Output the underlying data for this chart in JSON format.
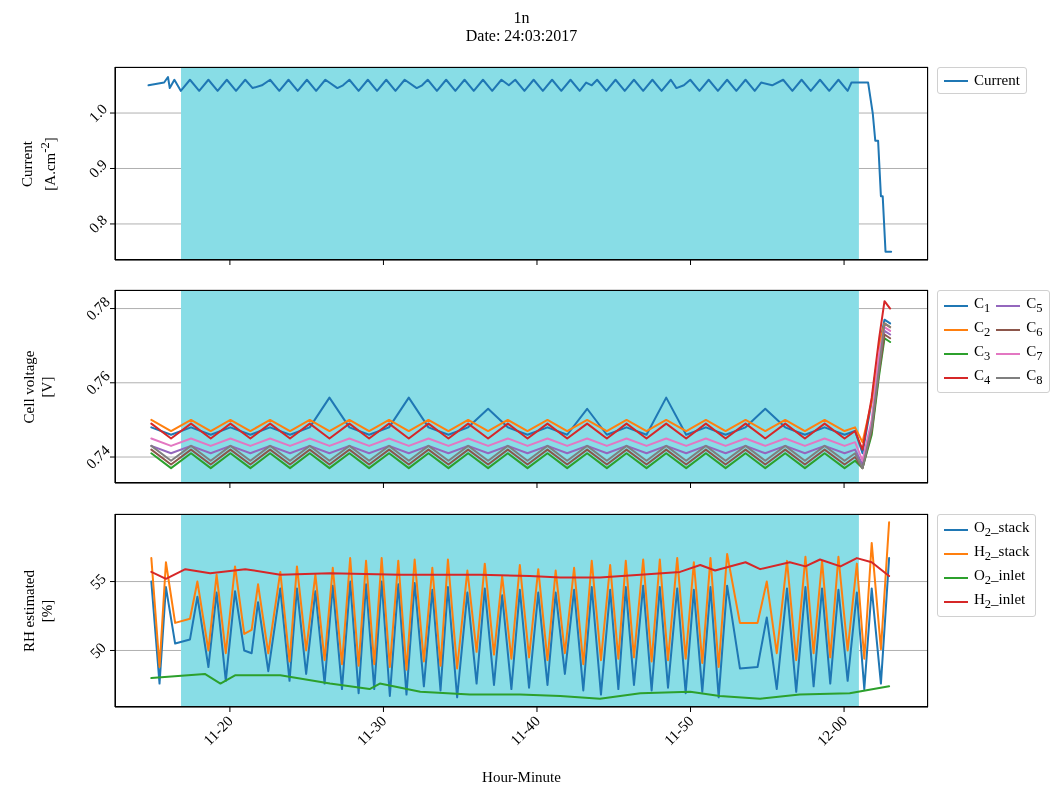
{
  "chart_data": [
    {
      "type": "line",
      "title": "1n",
      "subtitle": "Date: 24:03:2017",
      "ylabel": "Current\n[A.cm$^{-2}$]",
      "xlim": [
        "2017-03-24T11:12:31",
        "2017-03-24T12:05:28"
      ],
      "ylim": [
        0.735,
        1.083
      ],
      "yticks": [
        0.8,
        0.9,
        {
          "value": 1,
          "label": "1.0"
        }
      ],
      "xticks": [
        {
          "value": "2017-03-24T11:20",
          "label": null
        },
        {
          "value": "2017-03-24T11:30",
          "label": null
        },
        {
          "value": "2017-03-24T11:40",
          "label": null
        },
        {
          "value": "2017-03-24T11:50",
          "label": null
        },
        {
          "value": "2017-03-24T12:00",
          "label": null
        }
      ],
      "tick_labels": "y",
      "grid": true,
      "legend": "top right",
      "bands": [
        {
          "axis": "x",
          "from": "2017-03-24T11:16:49",
          "to": "2017-03-24T12:00:58",
          "color": "#88dde6"
        }
      ],
      "x": [
        "2017-03-24T11:14:42",
        "2017-03-24T11:15:43",
        "2017-03-24T11:15:58",
        "2017-03-24T11:16:05",
        "2017-03-24T11:16:23",
        "2017-03-24T11:16:48",
        "2017-03-24T11:17:24",
        "2017-03-24T11:18:00",
        "2017-03-24T11:18:36",
        "2017-03-24T11:19:12",
        "2017-03-24T11:19:48",
        "2017-03-24T11:20:24",
        "2017-03-24T11:21:00",
        "2017-03-24T11:21:29",
        "2017-03-24T11:22:05",
        "2017-03-24T11:22:37",
        "2017-03-24T11:23:13",
        "2017-03-24T11:23:49",
        "2017-03-24T11:24:25",
        "2017-03-24T11:25:01",
        "2017-03-24T11:25:37",
        "2017-03-24T11:26:13",
        "2017-03-24T11:27:00",
        "2017-03-24T11:27:22",
        "2017-03-24T11:27:47",
        "2017-03-24T11:28:23",
        "2017-03-24T11:28:59",
        "2017-03-24T11:29:35",
        "2017-03-24T11:30:11",
        "2017-03-24T11:30:47",
        "2017-03-24T11:31:23",
        "2017-03-24T11:32:10",
        "2017-03-24T11:32:31",
        "2017-03-24T11:32:53",
        "2017-03-24T11:33:29",
        "2017-03-24T11:34:05",
        "2017-03-24T11:34:41",
        "2017-03-24T11:35:17",
        "2017-03-24T11:35:53",
        "2017-03-24T11:36:29",
        "2017-03-24T11:37:05",
        "2017-03-24T11:37:41",
        "2017-03-24T11:38:10",
        "2017-03-24T11:38:35",
        "2017-03-24T11:39:11",
        "2017-03-24T11:39:47",
        "2017-03-24T11:40:23",
        "2017-03-24T11:40:59",
        "2017-03-24T11:41:35",
        "2017-03-24T11:42:11",
        "2017-03-24T11:42:47",
        "2017-03-24T11:43:12",
        "2017-03-24T11:43:34",
        "2017-03-24T11:43:55",
        "2017-03-24T11:44:31",
        "2017-03-24T11:45:07",
        "2017-03-24T11:45:43",
        "2017-03-24T11:46:19",
        "2017-03-24T11:46:55",
        "2017-03-24T11:47:31",
        "2017-03-24T11:48:07",
        "2017-03-24T11:48:43",
        "2017-03-24T11:49:05",
        "2017-03-24T11:49:34",
        "2017-03-24T11:49:59",
        "2017-03-24T11:50:35",
        "2017-03-24T11:51:11",
        "2017-03-24T11:51:47",
        "2017-03-24T11:52:23",
        "2017-03-24T11:52:59",
        "2017-03-24T11:53:35",
        "2017-03-24T11:54:11",
        "2017-03-24T11:54:36",
        "2017-03-24T11:55:19",
        "2017-03-24T11:56:02",
        "2017-03-24T11:56:38",
        "2017-03-24T11:57:14",
        "2017-03-24T11:57:50",
        "2017-03-24T11:58:26",
        "2017-03-24T11:59:02",
        "2017-03-24T11:59:38",
        "2017-03-24T12:00:14",
        "2017-03-24T12:00:29",
        "2017-03-24T12:01:34",
        "2017-03-24T12:01:52",
        "2017-03-24T12:02:02",
        "2017-03-24T12:02:13",
        "2017-03-24T12:02:24",
        "2017-03-24T12:02:31",
        "2017-03-24T12:02:42",
        "2017-03-24T12:03:04"
      ],
      "series": [
        {
          "name": "Current",
          "color": "#1f77b4",
          "values": [
            1.05,
            1.055,
            1.065,
            1.045,
            1.06,
            1.04,
            1.06,
            1.04,
            1.06,
            1.04,
            1.06,
            1.04,
            1.06,
            1.045,
            1.05,
            1.06,
            1.04,
            1.06,
            1.04,
            1.06,
            1.04,
            1.06,
            1.045,
            1.05,
            1.06,
            1.04,
            1.06,
            1.04,
            1.06,
            1.04,
            1.06,
            1.045,
            1.05,
            1.06,
            1.04,
            1.06,
            1.04,
            1.06,
            1.04,
            1.06,
            1.04,
            1.06,
            1.05,
            1.06,
            1.04,
            1.06,
            1.04,
            1.06,
            1.04,
            1.06,
            1.04,
            1.055,
            1.05,
            1.06,
            1.04,
            1.06,
            1.04,
            1.06,
            1.04,
            1.06,
            1.04,
            1.06,
            1.045,
            1.05,
            1.06,
            1.04,
            1.06,
            1.04,
            1.06,
            1.04,
            1.06,
            1.04,
            1.055,
            1.05,
            1.06,
            1.04,
            1.06,
            1.04,
            1.06,
            1.04,
            1.06,
            1.04,
            1.055,
            1.055,
            1.0,
            0.95,
            0.95,
            0.85,
            0.85,
            0.75,
            0.75
          ]
        }
      ]
    },
    {
      "type": "line",
      "ylabel": "Cell voltage\n[V]",
      "xlim": [
        "2017-03-24T11:12:31",
        "2017-03-24T12:05:28"
      ],
      "ylim": [
        0.733,
        0.785
      ],
      "yticks": [
        0.74,
        0.76,
        0.78
      ],
      "xticks": [
        {
          "value": "2017-03-24T11:20",
          "label": null
        },
        {
          "value": "2017-03-24T11:30",
          "label": null
        },
        {
          "value": "2017-03-24T11:40",
          "label": null
        },
        {
          "value": "2017-03-24T11:50",
          "label": null
        },
        {
          "value": "2017-03-24T12:00",
          "label": null
        }
      ],
      "tick_labels": "y",
      "grid": true,
      "legend": "top right",
      "bands": [
        {
          "axis": "x",
          "from": "2017-03-24T11:16:49",
          "to": "2017-03-24T12:00:58",
          "color": "#88dde6"
        }
      ],
      "x": [
        "2017-03-24T11:14:53",
        "2017-03-24T11:16:10",
        "2017-03-24T11:17:28",
        "2017-03-24T11:18:45",
        "2017-03-24T11:20:02",
        "2017-03-24T11:21:20",
        "2017-03-24T11:22:37",
        "2017-03-24T11:23:55",
        "2017-03-24T11:25:12",
        "2017-03-24T11:26:29",
        "2017-03-24T11:27:47",
        "2017-03-24T11:29:04",
        "2017-03-24T11:30:22",
        "2017-03-24T11:31:39",
        "2017-03-24T11:32:56",
        "2017-03-24T11:34:14",
        "2017-03-24T11:35:31",
        "2017-03-24T11:36:49",
        "2017-03-24T11:38:06",
        "2017-03-24T11:39:23",
        "2017-03-24T11:40:41",
        "2017-03-24T11:41:58",
        "2017-03-24T11:43:16",
        "2017-03-24T11:44:33",
        "2017-03-24T11:45:50",
        "2017-03-24T11:47:08",
        "2017-03-24T11:48:25",
        "2017-03-24T11:49:43",
        "2017-03-24T11:51:00",
        "2017-03-24T11:52:17",
        "2017-03-24T11:53:35",
        "2017-03-24T11:54:52",
        "2017-03-24T11:56:10",
        "2017-03-24T11:57:27",
        "2017-03-24T11:58:44",
        "2017-03-24T12:00:02",
        "2017-03-24T12:00:43",
        "2017-03-24T12:01:12",
        "2017-03-24T12:01:48",
        "2017-03-24T12:02:17",
        "2017-03-24T12:02:38",
        "2017-03-24T12:03:00"
      ],
      "series": [
        {
          "name": "C$_{1}$",
          "color": "#1f77b4",
          "values": [
            0.748,
            0.746,
            0.748,
            0.746,
            0.748,
            0.746,
            0.748,
            0.746,
            0.748,
            0.756,
            0.748,
            0.746,
            0.748,
            0.756,
            0.748,
            0.746,
            0.748,
            0.753,
            0.748,
            0.746,
            0.748,
            0.746,
            0.753,
            0.746,
            0.748,
            0.746,
            0.756,
            0.746,
            0.748,
            0.746,
            0.748,
            0.753,
            0.748,
            0.746,
            0.748,
            0.746,
            0.747,
            0.741,
            0.755,
            0.77,
            0.777,
            0.776
          ]
        },
        {
          "name": "C$_{2}$",
          "color": "#ff7f0e",
          "values": [
            0.75,
            0.747,
            0.75,
            0.747,
            0.75,
            0.747,
            0.75,
            0.747,
            0.75,
            0.747,
            0.75,
            0.747,
            0.75,
            0.747,
            0.75,
            0.747,
            0.75,
            0.747,
            0.75,
            0.747,
            0.75,
            0.747,
            0.75,
            0.747,
            0.75,
            0.747,
            0.75,
            0.747,
            0.75,
            0.747,
            0.75,
            0.747,
            0.75,
            0.747,
            0.75,
            0.747,
            0.748,
            0.744,
            0.755,
            0.77,
            0.776,
            0.775
          ]
        },
        {
          "name": "C$_{3}$",
          "color": "#2ca02c",
          "values": [
            0.741,
            0.737,
            0.741,
            0.737,
            0.741,
            0.737,
            0.741,
            0.737,
            0.741,
            0.737,
            0.741,
            0.737,
            0.741,
            0.737,
            0.741,
            0.737,
            0.741,
            0.737,
            0.741,
            0.737,
            0.741,
            0.737,
            0.741,
            0.737,
            0.741,
            0.737,
            0.741,
            0.737,
            0.741,
            0.737,
            0.741,
            0.737,
            0.741,
            0.737,
            0.741,
            0.737,
            0.739,
            0.737,
            0.746,
            0.762,
            0.772,
            0.771
          ]
        },
        {
          "name": "C$_{4}$",
          "color": "#d62728",
          "values": [
            0.749,
            0.745,
            0.749,
            0.745,
            0.749,
            0.745,
            0.749,
            0.745,
            0.749,
            0.745,
            0.749,
            0.745,
            0.749,
            0.745,
            0.749,
            0.745,
            0.749,
            0.745,
            0.749,
            0.745,
            0.749,
            0.745,
            0.749,
            0.745,
            0.749,
            0.745,
            0.749,
            0.745,
            0.749,
            0.745,
            0.749,
            0.745,
            0.749,
            0.745,
            0.749,
            0.745,
            0.747,
            0.742,
            0.756,
            0.772,
            0.782,
            0.78
          ]
        },
        {
          "name": "C$_{5}$",
          "color": "#9467bd",
          "values": [
            0.743,
            0.741,
            0.743,
            0.741,
            0.743,
            0.741,
            0.743,
            0.741,
            0.743,
            0.741,
            0.743,
            0.741,
            0.743,
            0.741,
            0.743,
            0.741,
            0.743,
            0.741,
            0.743,
            0.741,
            0.743,
            0.741,
            0.743,
            0.741,
            0.743,
            0.741,
            0.743,
            0.741,
            0.743,
            0.741,
            0.743,
            0.741,
            0.743,
            0.741,
            0.743,
            0.741,
            0.742,
            0.738,
            0.749,
            0.765,
            0.774,
            0.773
          ]
        },
        {
          "name": "C$_{6}$",
          "color": "#8c564b",
          "values": [
            0.742,
            0.738,
            0.742,
            0.738,
            0.742,
            0.738,
            0.742,
            0.738,
            0.742,
            0.738,
            0.742,
            0.738,
            0.742,
            0.738,
            0.742,
            0.738,
            0.742,
            0.738,
            0.742,
            0.738,
            0.742,
            0.738,
            0.742,
            0.738,
            0.742,
            0.738,
            0.742,
            0.738,
            0.742,
            0.738,
            0.742,
            0.738,
            0.742,
            0.738,
            0.742,
            0.738,
            0.74,
            0.737,
            0.747,
            0.763,
            0.773,
            0.772
          ]
        },
        {
          "name": "C$_{7}$",
          "color": "#e377c2",
          "values": [
            0.745,
            0.743,
            0.745,
            0.743,
            0.745,
            0.743,
            0.745,
            0.743,
            0.745,
            0.743,
            0.745,
            0.743,
            0.745,
            0.743,
            0.745,
            0.743,
            0.745,
            0.743,
            0.745,
            0.743,
            0.745,
            0.743,
            0.745,
            0.743,
            0.745,
            0.743,
            0.745,
            0.743,
            0.745,
            0.743,
            0.745,
            0.743,
            0.745,
            0.743,
            0.745,
            0.743,
            0.744,
            0.739,
            0.75,
            0.768,
            0.775,
            0.774
          ]
        },
        {
          "name": "C$_{8}$",
          "color": "#7f7f7f",
          "values": [
            0.743,
            0.739,
            0.743,
            0.739,
            0.743,
            0.739,
            0.743,
            0.739,
            0.743,
            0.739,
            0.743,
            0.739,
            0.743,
            0.739,
            0.743,
            0.739,
            0.743,
            0.739,
            0.743,
            0.739,
            0.743,
            0.739,
            0.743,
            0.739,
            0.743,
            0.739,
            0.743,
            0.739,
            0.743,
            0.739,
            0.743,
            0.739,
            0.743,
            0.739,
            0.743,
            0.739,
            0.741,
            0.737,
            0.748,
            0.764,
            0.776,
            0.775
          ]
        }
      ]
    },
    {
      "type": "line",
      "ylabel": "RH estimated\n[%]",
      "xlabel": "Hour-Minute",
      "xlim": [
        "2017-03-24T11:12:31",
        "2017-03-24T12:05:28"
      ],
      "ylim": [
        45.9,
        59.9
      ],
      "yticks": [
        50,
        55
      ],
      "xticks": [
        {
          "value": "2017-03-24T11:20",
          "label": "11-20"
        },
        {
          "value": "2017-03-24T11:30",
          "label": "11-30"
        },
        {
          "value": "2017-03-24T11:40",
          "label": "11-40"
        },
        {
          "value": "2017-03-24T11:50",
          "label": "11-50"
        },
        {
          "value": "2017-03-24T12:00",
          "label": "12-00"
        }
      ],
      "grid": true,
      "legend": "top right",
      "bands": [
        {
          "axis": "x",
          "from": "2017-03-24T11:16:49",
          "to": "2017-03-24T12:00:58",
          "color": "#88dde6"
        }
      ],
      "x": [
        "2017-03-24T11:14:53",
        "2017-03-24T11:15:25",
        "2017-03-24T11:15:50",
        "2017-03-24T11:16:26",
        "2017-03-24T11:17:24",
        "2017-03-24T11:17:53",
        "2017-03-24T11:18:36",
        "2017-03-24T11:19:08",
        "2017-03-24T11:19:44",
        "2017-03-24T11:20:20",
        "2017-03-24T11:20:56",
        "2017-03-24T11:21:25",
        "2017-03-24T11:21:50",
        "2017-03-24T11:22:30",
        "2017-03-24T11:23:17",
        "2017-03-24T11:23:53",
        "2017-03-24T11:24:22",
        "2017-03-24T11:24:58",
        "2017-03-24T11:25:34",
        "2017-03-24T11:26:10",
        "2017-03-24T11:26:42",
        "2017-03-24T11:27:18",
        "2017-03-24T11:27:50",
        "2017-03-24T11:28:23",
        "2017-03-24T11:28:52",
        "2017-03-24T11:29:24",
        "2017-03-24T11:29:53",
        "2017-03-24T11:30:25",
        "2017-03-24T11:30:58",
        "2017-03-24T11:31:30",
        "2017-03-24T11:32:02",
        "2017-03-24T11:32:38",
        "2017-03-24T11:33:11",
        "2017-03-24T11:33:43",
        "2017-03-24T11:34:12",
        "2017-03-24T11:34:48",
        "2017-03-24T11:35:28",
        "2017-03-24T11:36:04",
        "2017-03-24T11:36:36",
        "2017-03-24T11:37:12",
        "2017-03-24T11:37:44",
        "2017-03-24T11:38:20",
        "2017-03-24T11:38:53",
        "2017-03-24T11:39:29",
        "2017-03-24T11:40:05",
        "2017-03-24T11:40:41",
        "2017-03-24T11:41:13",
        "2017-03-24T11:41:49",
        "2017-03-24T11:42:25",
        "2017-03-24T11:43:01",
        "2017-03-24T11:43:34",
        "2017-03-24T11:44:10",
        "2017-03-24T11:44:46",
        "2017-03-24T11:45:18",
        "2017-03-24T11:45:47",
        "2017-03-24T11:46:19",
        "2017-03-24T11:46:55",
        "2017-03-24T11:47:28",
        "2017-03-24T11:48:00",
        "2017-03-24T11:48:32",
        "2017-03-24T11:49:08",
        "2017-03-24T11:49:41",
        "2017-03-24T11:50:13",
        "2017-03-24T11:50:46",
        "2017-03-24T11:51:18",
        "2017-03-24T11:51:50",
        "2017-03-24T11:52:23",
        "2017-03-24T11:53:13",
        "2017-03-24T11:54:22",
        "2017-03-24T11:54:58",
        "2017-03-24T11:55:37",
        "2017-03-24T11:56:17",
        "2017-03-24T11:56:53",
        "2017-03-24T11:57:29",
        "2017-03-24T11:58:01",
        "2017-03-24T11:58:34",
        "2017-03-24T11:59:06",
        "2017-03-24T11:59:38",
        "2017-03-24T12:00:14",
        "2017-03-24T12:00:50",
        "2017-03-24T12:01:19",
        "2017-03-24T12:01:48",
        "2017-03-24T12:02:24",
        "2017-03-24T12:02:56"
      ],
      "series": [
        {
          "name": "O$_{2}$_stack",
          "color": "#1f77b4",
          "values": [
            55.0,
            47.6,
            54.6,
            50.5,
            50.8,
            53.9,
            48.8,
            54.2,
            47.8,
            54.3,
            50.0,
            49.8,
            53.5,
            48.5,
            54.5,
            47.8,
            54.5,
            48.3,
            54.3,
            47.6,
            54.7,
            47.2,
            55.0,
            46.9,
            54.8,
            47.2,
            55.0,
            46.7,
            54.8,
            46.8,
            54.9,
            47.4,
            54.4,
            47.1,
            54.6,
            46.6,
            54.2,
            47.6,
            54.5,
            47.5,
            54.0,
            47.2,
            54.4,
            47.3,
            54.2,
            47.5,
            54.2,
            48.3,
            54.4,
            47.1,
            54.6,
            46.8,
            54.4,
            47.2,
            54.6,
            47.5,
            54.7,
            47.1,
            54.6,
            47.3,
            54.5,
            46.9,
            54.4,
            47.0,
            54.6,
            46.6,
            54.7,
            48.7,
            48.8,
            52.4,
            47.2,
            54.5,
            47.0,
            54.6,
            47.4,
            54.5,
            47.6,
            54.4,
            47.8,
            54.2,
            47.2,
            54.5,
            47.6,
            56.7
          ]
        },
        {
          "name": "H$_{2}$_stack",
          "color": "#ff7f0e",
          "values": [
            56.7,
            48.8,
            56.4,
            52.0,
            52.3,
            55.0,
            50.0,
            55.5,
            49.8,
            56.1,
            51.2,
            51.5,
            54.8,
            49.8,
            55.7,
            49.2,
            56.1,
            50.0,
            55.5,
            49.3,
            56.0,
            49.0,
            56.7,
            48.9,
            56.5,
            49.0,
            56.7,
            48.8,
            56.5,
            48.6,
            56.6,
            49.2,
            56.0,
            48.9,
            56.6,
            48.7,
            55.8,
            49.9,
            56.3,
            49.7,
            55.4,
            49.4,
            56.2,
            49.5,
            55.9,
            49.3,
            55.8,
            49.8,
            56.0,
            49.0,
            56.5,
            49.3,
            56.2,
            49.4,
            56.5,
            49.5,
            56.6,
            49.2,
            56.6,
            49.3,
            56.7,
            49.4,
            56.4,
            49.1,
            56.7,
            48.8,
            57.0,
            52.0,
            52.0,
            55.0,
            49.8,
            56.5,
            49.3,
            56.8,
            49.8,
            56.5,
            49.5,
            56.8,
            50.0,
            56.3,
            49.4,
            57.8,
            50.1,
            59.3
          ]
        },
        {
          "name": "O$_{2}$_inlet",
          "color": "#2ca02c",
          "x": [
            "2017-03-24T11:14:53",
            "2017-03-24T11:18:22",
            "2017-03-24T11:19:23",
            "2017-03-24T11:20:20",
            "2017-03-24T11:23:17",
            "2017-03-24T11:26:31",
            "2017-03-24T11:29:06",
            "2017-03-24T11:29:46",
            "2017-03-24T11:32:24",
            "2017-03-24T11:35:38",
            "2017-03-24T11:38:53",
            "2017-03-24T11:41:31",
            "2017-03-24T11:44:06",
            "2017-03-24T11:46:44",
            "2017-03-24T11:49:59",
            "2017-03-24T11:51:54",
            "2017-03-24T11:54:32",
            "2017-03-24T11:57:07",
            "2017-03-24T12:00:22",
            "2017-03-24T12:02:56"
          ],
          "values": [
            48.0,
            48.3,
            47.6,
            48.2,
            48.2,
            47.6,
            47.2,
            47.6,
            47.0,
            46.8,
            46.8,
            46.7,
            46.5,
            46.9,
            47.0,
            46.7,
            46.5,
            46.8,
            46.9,
            47.4
          ]
        },
        {
          "name": "H$_{2}$_inlet",
          "color": "#d62728",
          "x": [
            "2017-03-24T11:14:53",
            "2017-03-24T11:15:50",
            "2017-03-24T11:17:06",
            "2017-03-24T11:18:43",
            "2017-03-24T11:21:00",
            "2017-03-24T11:23:17",
            "2017-03-24T11:26:31",
            "2017-03-24T11:31:05",
            "2017-03-24T11:36:18",
            "2017-03-24T11:39:32",
            "2017-03-24T11:41:31",
            "2017-03-24T11:44:06",
            "2017-03-24T11:46:44",
            "2017-03-24T11:49:19",
            "2017-03-24T11:50:38",
            "2017-03-24T11:51:36",
            "2017-03-24T11:53:35",
            "2017-03-24T11:54:32",
            "2017-03-24T11:56:28",
            "2017-03-24T11:57:29",
            "2017-03-24T11:58:26",
            "2017-03-24T11:59:46",
            "2017-03-24T12:00:50",
            "2017-03-24T12:01:48",
            "2017-03-24T12:02:56"
          ],
          "values": [
            55.7,
            55.2,
            55.9,
            55.6,
            55.9,
            55.5,
            55.6,
            55.5,
            55.5,
            55.4,
            55.3,
            55.3,
            55.5,
            55.7,
            56.2,
            55.8,
            56.4,
            55.9,
            56.4,
            56.1,
            56.6,
            56.1,
            56.7,
            56.4,
            55.4
          ]
        }
      ]
    }
  ]
}
